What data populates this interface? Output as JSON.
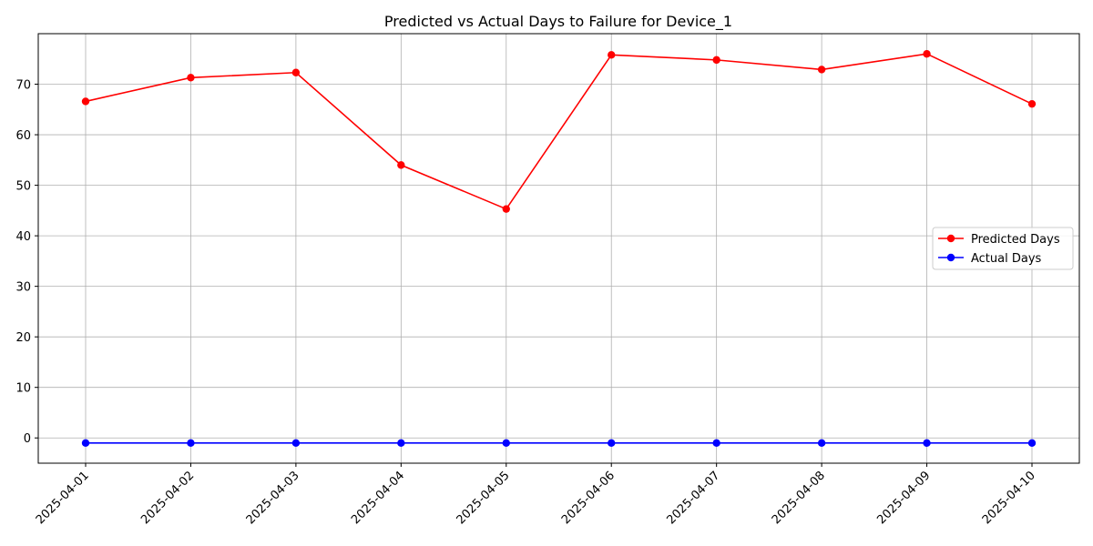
{
  "chart_data": {
    "type": "line",
    "title": "Predicted vs Actual Days to Failure for Device_1",
    "xlabel": "",
    "ylabel": "",
    "categories": [
      "2025-04-01",
      "2025-04-02",
      "2025-04-03",
      "2025-04-04",
      "2025-04-05",
      "2025-04-06",
      "2025-04-07",
      "2025-04-08",
      "2025-04-09",
      "2025-04-10"
    ],
    "series": [
      {
        "name": "Predicted Days",
        "color": "#ff0000",
        "values": [
          66.6,
          71.3,
          72.3,
          54.0,
          45.3,
          75.8,
          74.8,
          72.9,
          76.0,
          66.1
        ]
      },
      {
        "name": "Actual Days",
        "color": "#0000ff",
        "values": [
          -1,
          -1,
          -1,
          -1,
          -1,
          -1,
          -1,
          -1,
          -1,
          -1
        ]
      }
    ],
    "ylim": [
      -5,
      80
    ],
    "yticks": [
      0,
      10,
      20,
      30,
      40,
      50,
      60,
      70
    ],
    "grid": true,
    "legend_position": "center-right"
  }
}
